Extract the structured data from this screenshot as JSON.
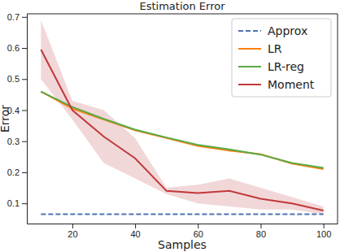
{
  "chart_data": {
    "type": "line",
    "title": "Estimation Error",
    "x_label": "Samples",
    "y_label": "Error",
    "x": [
      10,
      20,
      30,
      40,
      50,
      60,
      70,
      80,
      90,
      100
    ],
    "xlim": [
      5.5,
      104.5
    ],
    "xticks": [
      20,
      40,
      60,
      80,
      100
    ],
    "ylim": [
      0.035,
      0.71
    ],
    "yticks": [
      0.1,
      0.2,
      0.3,
      0.4,
      0.5,
      0.6,
      0.7
    ],
    "grid": false,
    "legend": "upper right",
    "series": [
      {
        "name": "Approx",
        "color": "#4c72b0",
        "line_style": "dashed",
        "values": [
          0.065,
          0.065,
          0.065,
          0.065,
          0.065,
          0.065,
          0.065,
          0.065,
          0.065,
          0.065
        ]
      },
      {
        "name": "LR",
        "color": "#ff7f0e",
        "line_style": "solid",
        "values": [
          0.46,
          0.405,
          0.37,
          0.335,
          0.31,
          0.285,
          0.27,
          0.258,
          0.228,
          0.21
        ]
      },
      {
        "name": "LR-reg",
        "color": "#5aaa46",
        "line_style": "solid",
        "values": [
          0.46,
          0.41,
          0.372,
          0.337,
          0.312,
          0.288,
          0.274,
          0.257,
          0.23,
          0.214
        ]
      },
      {
        "name": "Moment",
        "color": "#c0393b",
        "line_style": "solid",
        "values": [
          0.595,
          0.4,
          0.315,
          0.245,
          0.14,
          0.133,
          0.14,
          0.115,
          0.1,
          0.077
        ],
        "lower": [
          0.5,
          0.37,
          0.23,
          0.18,
          0.13,
          0.1,
          0.09,
          0.08,
          0.08,
          0.065
        ],
        "upper": [
          0.69,
          0.43,
          0.4,
          0.31,
          0.15,
          0.16,
          0.18,
          0.15,
          0.12,
          0.09
        ]
      }
    ]
  }
}
